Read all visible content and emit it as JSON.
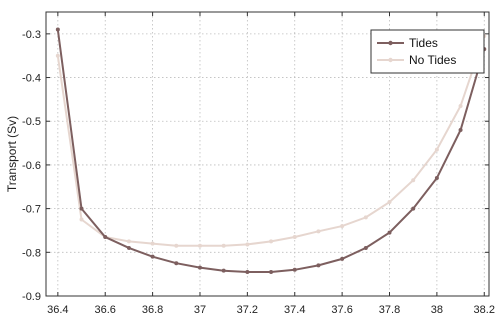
{
  "chart_data": {
    "type": "line",
    "title": "",
    "xlabel": "",
    "ylabel": "Transport (Sv)",
    "xlim": [
      36.35,
      38.22
    ],
    "ylim": [
      -0.9,
      -0.25
    ],
    "x_ticks": [
      36.4,
      36.6,
      36.8,
      37,
      37.2,
      37.4,
      37.6,
      37.8,
      38,
      38.2
    ],
    "x_tick_labels": [
      "36.4",
      "36.6",
      "36.8",
      "37",
      "37.2",
      "37.4",
      "37.6",
      "37.8",
      "38",
      "38.2"
    ],
    "y_ticks": [
      -0.3,
      -0.4,
      -0.5,
      -0.6,
      -0.7,
      -0.8,
      -0.9
    ],
    "y_tick_labels": [
      "-0.3",
      "-0.4",
      "-0.5",
      "-0.6",
      "-0.7",
      "-0.8",
      "-0.9"
    ],
    "grid": true,
    "legend": "top-right",
    "series": [
      {
        "name": "Tides",
        "color": "#7d5f5f",
        "x": [
          36.4,
          36.5,
          36.6,
          36.7,
          36.8,
          36.9,
          37.0,
          37.1,
          37.2,
          37.3,
          37.4,
          37.5,
          37.6,
          37.7,
          37.8,
          37.9,
          38.0,
          38.1,
          38.2
        ],
        "y": [
          -0.29,
          -0.7,
          -0.765,
          -0.79,
          -0.81,
          -0.825,
          -0.835,
          -0.842,
          -0.845,
          -0.845,
          -0.84,
          -0.83,
          -0.815,
          -0.79,
          -0.755,
          -0.7,
          -0.63,
          -0.52,
          -0.335
        ]
      },
      {
        "name": "No Tides",
        "color": "#e6d6cf",
        "x": [
          36.4,
          36.5,
          36.6,
          36.7,
          36.8,
          36.9,
          37.0,
          37.1,
          37.2,
          37.3,
          37.4,
          37.5,
          37.6,
          37.7,
          37.8,
          37.9,
          38.0,
          38.1,
          38.2
        ],
        "y": [
          -0.35,
          -0.725,
          -0.765,
          -0.775,
          -0.78,
          -0.785,
          -0.785,
          -0.785,
          -0.782,
          -0.775,
          -0.765,
          -0.752,
          -0.74,
          -0.72,
          -0.685,
          -0.635,
          -0.565,
          -0.465,
          -0.305
        ]
      }
    ]
  }
}
